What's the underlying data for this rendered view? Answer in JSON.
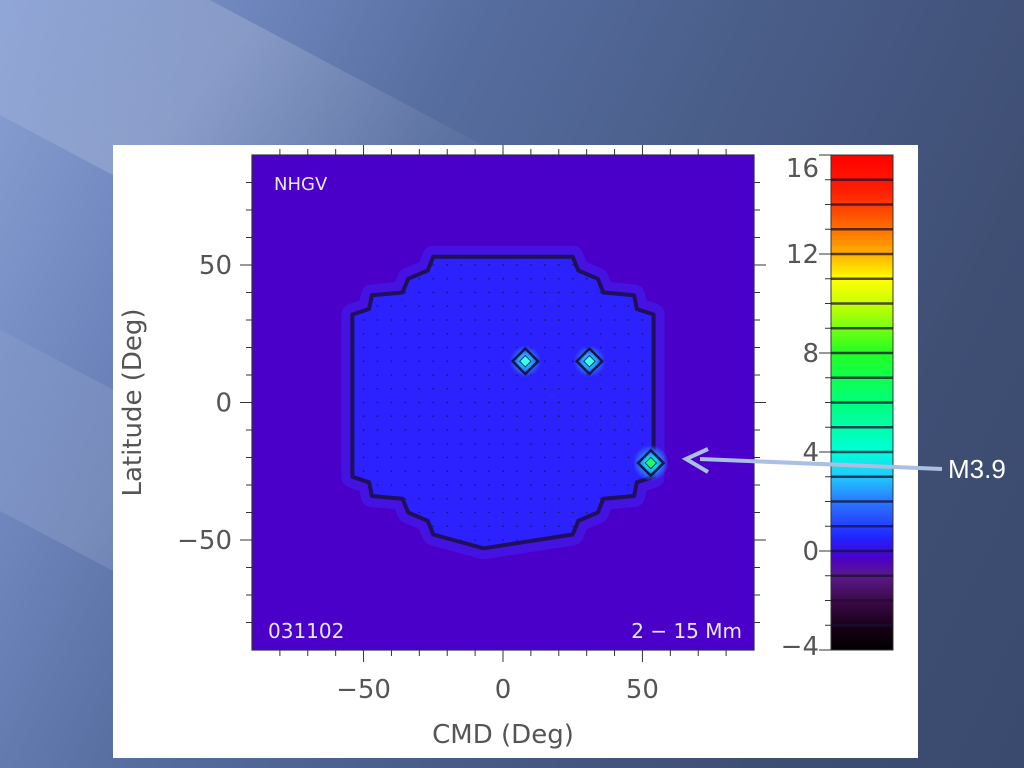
{
  "slide": {
    "callout_label": "M3.9"
  },
  "chart_data": {
    "type": "heatmap",
    "panel_label": "NHGV",
    "date_label": "031102",
    "depth_label": "2 − 15 Mm",
    "xlabel": "CMD (Deg)",
    "ylabel": "Latitude (Deg)",
    "xlim": [
      -90,
      90
    ],
    "ylim": [
      -90,
      90
    ],
    "xticks": [
      "−50",
      "0",
      "50"
    ],
    "xtick_values": [
      -50,
      0,
      50
    ],
    "yticks": [
      "50",
      "0",
      "−50"
    ],
    "ytick_values": [
      50,
      0,
      -50
    ],
    "background_value": -0.5,
    "region_value": 0.4,
    "region_boundary_lat_lon": [
      [
        -7,
        53
      ],
      [
        25,
        53
      ],
      [
        27,
        48
      ],
      [
        34,
        45
      ],
      [
        36,
        40
      ],
      [
        47,
        39
      ],
      [
        48,
        34
      ],
      [
        54,
        32
      ],
      [
        54,
        -27
      ],
      [
        48,
        -29
      ],
      [
        47,
        -34
      ],
      [
        36,
        -35
      ],
      [
        34,
        -40
      ],
      [
        27,
        -43
      ],
      [
        25,
        -48
      ],
      [
        -7,
        -53
      ],
      [
        -25,
        -48
      ],
      [
        -27,
        -43
      ],
      [
        -34,
        -40
      ],
      [
        -36,
        -35
      ],
      [
        -47,
        -34
      ],
      [
        -48,
        -29
      ],
      [
        -54,
        -27
      ],
      [
        -54,
        32
      ],
      [
        -48,
        34
      ],
      [
        -47,
        39
      ],
      [
        -36,
        40
      ],
      [
        -34,
        45
      ],
      [
        -27,
        48
      ],
      [
        -25,
        53
      ]
    ],
    "sources": [
      {
        "cmd": 8,
        "lat": 15,
        "value": 4.2
      },
      {
        "cmd": 31,
        "lat": 15,
        "value": 3.2
      },
      {
        "cmd": 53,
        "lat": -22,
        "value": 6.5
      }
    ],
    "colorbar": {
      "min": -4,
      "max": 16,
      "ticks": [
        "16",
        "12",
        "8",
        "4",
        "0",
        "−4"
      ],
      "tick_values": [
        16,
        12,
        8,
        4,
        0,
        -4
      ],
      "stops": [
        {
          "v": -4,
          "c": "#000000"
        },
        {
          "v": -3,
          "c": "#1a0018"
        },
        {
          "v": -2,
          "c": "#3c0a4a"
        },
        {
          "v": -1,
          "c": "#5a1a8a"
        },
        {
          "v": -0.3,
          "c": "#4a00c8"
        },
        {
          "v": 0.5,
          "c": "#2222ff"
        },
        {
          "v": 2,
          "c": "#2a78ff"
        },
        {
          "v": 3,
          "c": "#22c8ff"
        },
        {
          "v": 4,
          "c": "#00ffd8"
        },
        {
          "v": 6,
          "c": "#00ff7a"
        },
        {
          "v": 8,
          "c": "#22ff22"
        },
        {
          "v": 10,
          "c": "#c8ff00"
        },
        {
          "v": 11,
          "c": "#ffff00"
        },
        {
          "v": 12,
          "c": "#ffb000"
        },
        {
          "v": 13,
          "c": "#ff7000"
        },
        {
          "v": 14.5,
          "c": "#ff2000"
        },
        {
          "v": 16,
          "c": "#ff0000"
        }
      ]
    }
  }
}
